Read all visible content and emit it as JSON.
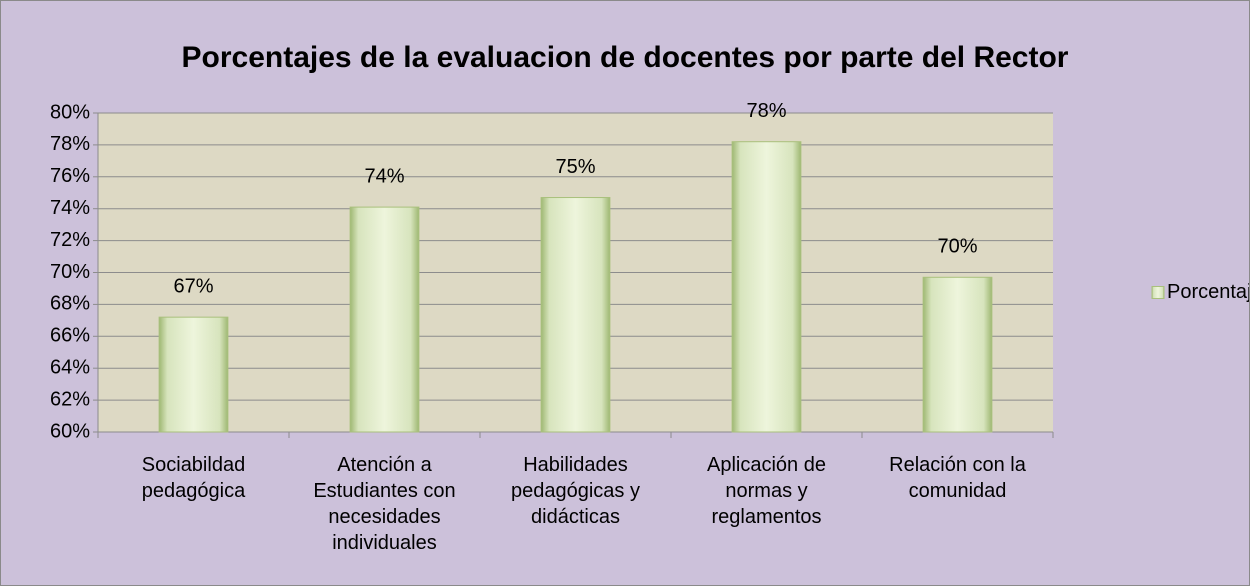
{
  "chart_data": {
    "type": "bar",
    "title": "Porcentajes de la evaluacion de docentes por parte del Rector",
    "categories": [
      "Sociabildad pedagógica",
      "Atención a Estudiantes con necesidades individuales",
      "Habilidades pedagógicas y didácticas",
      "Aplicación de normas y reglamentos",
      "Relación con la comunidad"
    ],
    "series": [
      {
        "name": "Porcentaje",
        "color": "#d7e4bd",
        "values": [
          67.2,
          74.1,
          74.7,
          78.2,
          69.7
        ],
        "value_labels": [
          "67%",
          "74%",
          "75%",
          "78%",
          "70%"
        ]
      }
    ],
    "ylim": [
      60,
      80
    ],
    "yticks": [
      {
        "value": 60,
        "label": "60%"
      },
      {
        "value": 62,
        "label": "62%"
      },
      {
        "value": 64,
        "label": "64%"
      },
      {
        "value": 66,
        "label": "66%"
      },
      {
        "value": 68,
        "label": "68%"
      },
      {
        "value": 70,
        "label": "70%"
      },
      {
        "value": 72,
        "label": "72%"
      },
      {
        "value": 74,
        "label": "74%"
      },
      {
        "value": 76,
        "label": "76%"
      },
      {
        "value": 78,
        "label": "78%"
      },
      {
        "value": 80,
        "label": "80%"
      }
    ],
    "grid": true,
    "legend": "right"
  }
}
